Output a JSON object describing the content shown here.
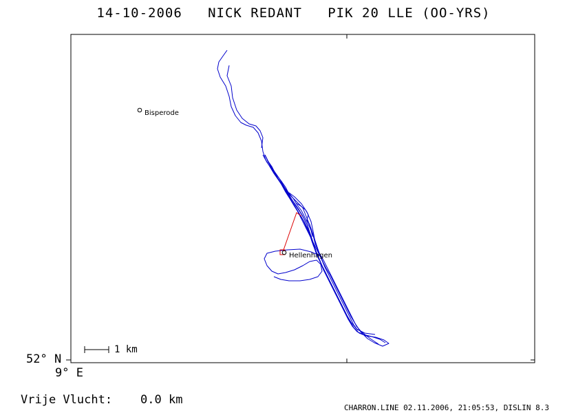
{
  "header": {
    "title": "14-10-2006   NICK REDANT   PIK 20 LLE (OO-YRS)"
  },
  "map": {
    "lat_label": "52° N",
    "lon_label": "9° E",
    "scale_label": "1 km",
    "places": [
      {
        "name": "Bisperode"
      },
      {
        "name": "Hellenhagen"
      }
    ],
    "colors": {
      "track": "#0000cc",
      "task_line": "#dd0000",
      "frame": "#000000"
    }
  },
  "footer": {
    "left_label": "Vrije Vlucht:",
    "distance": "0.0 km",
    "credit": "CHARRON.LINE 02.11.2006, 21:05:53, DISLIN 8.3"
  }
}
